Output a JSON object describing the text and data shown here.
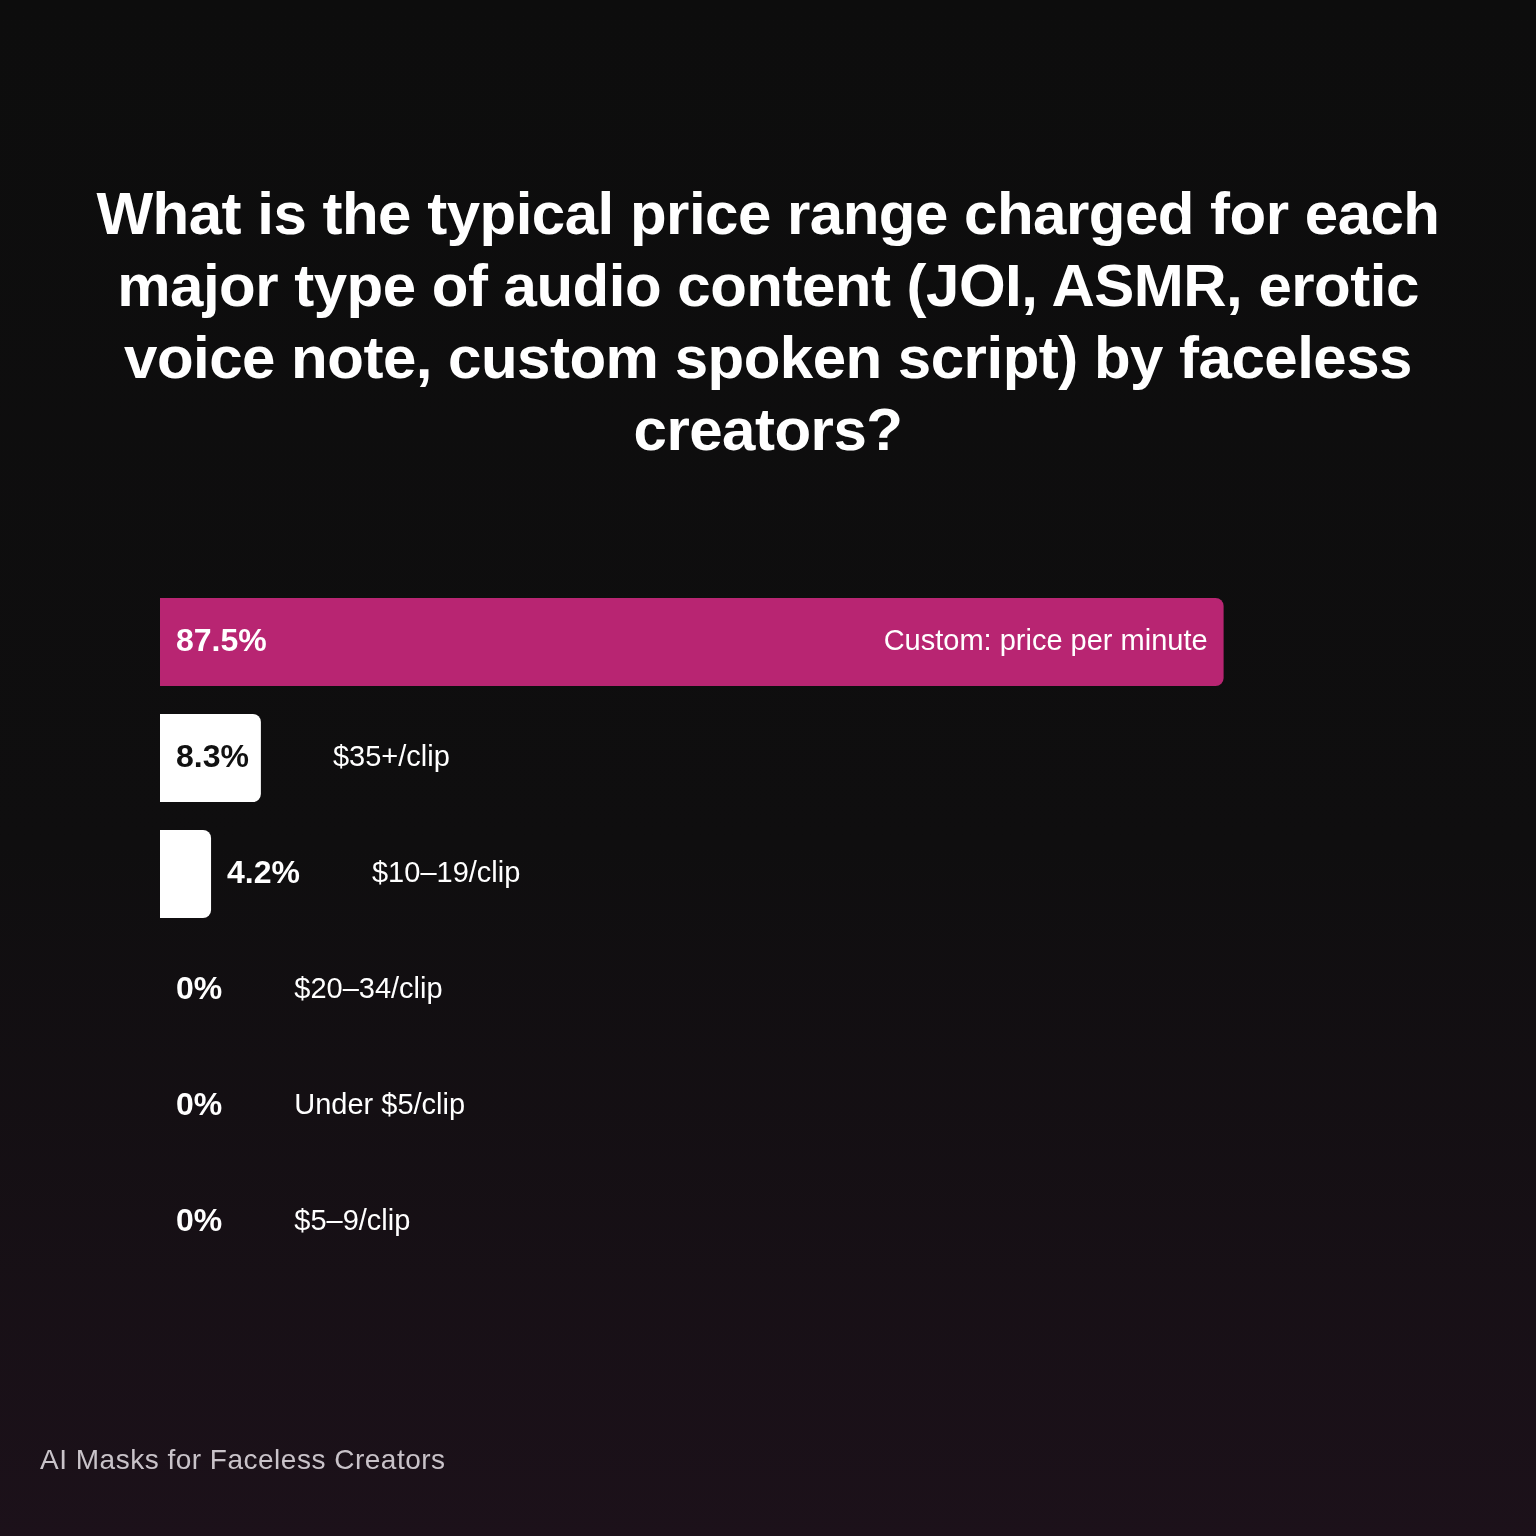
{
  "chart_data": {
    "type": "bar",
    "orientation": "horizontal",
    "title": "What is the typical price range charged for each major type of audio content (JOI, ASMR, erotic voice note, custom spoken script) by faceless creators?",
    "categories": [
      "Custom: price per minute",
      "$35+/clip",
      "$10–19/clip",
      "$20–34/clip",
      "Under $5/clip",
      "$5–9/clip"
    ],
    "values": [
      87.5,
      8.3,
      4.2,
      0,
      0,
      0
    ],
    "colors": [
      "#b82572",
      "#ffffff",
      "#ffffff",
      "#ffffff",
      "#ffffff",
      "#ffffff"
    ],
    "value_labels": [
      "87.5%",
      "8.3%",
      "4.2%",
      "0%",
      "0%",
      "0%"
    ],
    "tick_labels": "y",
    "annotations": [
      "AI Masks for Faceless Creators"
    ]
  }
}
